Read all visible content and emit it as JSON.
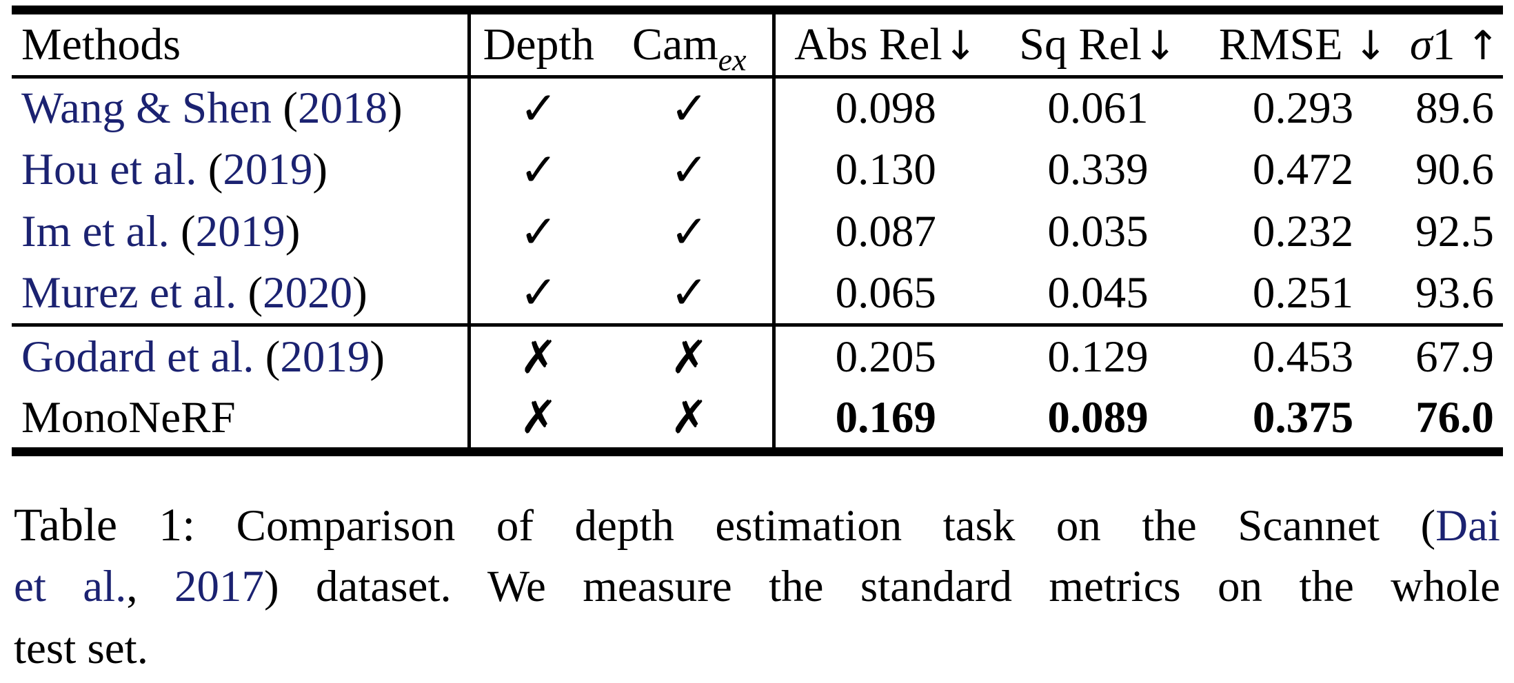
{
  "colors": {
    "link_blue": "#1b2271",
    "text_black": "#000000",
    "background": "#ffffff"
  },
  "table": {
    "header": {
      "methods": "Methods",
      "depth": "Depth",
      "cam_base": "Cam",
      "cam_sub": "ex",
      "abs_rel": "Abs Rel",
      "abs_rel_arrow": "↓",
      "sq_rel": "Sq Rel",
      "sq_rel_arrow": "↓",
      "rmse": "RMSE",
      "rmse_arrow": "↓",
      "sigma": "σ",
      "sigma_num": "1",
      "sigma_arrow": "↑"
    },
    "rows": [
      {
        "name": "Wang & Shen ",
        "open": "(",
        "year": "2018",
        "close": ")",
        "depth_mark": "✓",
        "cam_mark": "✓",
        "metrics": [
          "0.098",
          "0.061",
          "0.293",
          "89.6"
        ]
      },
      {
        "name": "Hou et al. ",
        "open": "(",
        "year": "2019",
        "close": ")",
        "depth_mark": "✓",
        "cam_mark": "✓",
        "metrics": [
          "0.130",
          "0.339",
          "0.472",
          "90.6"
        ]
      },
      {
        "name": "Im et al. ",
        "open": "(",
        "year": "2019",
        "close": ")",
        "depth_mark": "✓",
        "cam_mark": "✓",
        "metrics": [
          "0.087",
          "0.035",
          "0.232",
          "92.5"
        ]
      },
      {
        "name": "Murez et al. ",
        "open": "(",
        "year": "2020",
        "close": ")",
        "depth_mark": "✓",
        "cam_mark": "✓",
        "metrics": [
          "0.065",
          "0.045",
          "0.251",
          "93.6"
        ]
      },
      {
        "name": "Godard et al. ",
        "open": "(",
        "year": "2019",
        "close": ")",
        "depth_mark": "✗",
        "cam_mark": "✗",
        "metrics": [
          "0.205",
          "0.129",
          "0.453",
          "67.9"
        ]
      },
      {
        "name": "MonoNeRF",
        "depth_mark": "✗",
        "cam_mark": "✗",
        "metrics": [
          "0.169",
          "0.089",
          "0.375",
          "76.0"
        ]
      }
    ]
  },
  "caption": {
    "label": "Table 1:",
    "line1_text": " Comparison of depth estimation task on the Scannet (",
    "line1_link": "Dai",
    "line2_link_a": "et al.",
    "line2_comma": ", ",
    "line2_link_b": "2017",
    "line2_text": ") dataset. We measure the standard metrics on the whole",
    "line3_text": "test set."
  }
}
